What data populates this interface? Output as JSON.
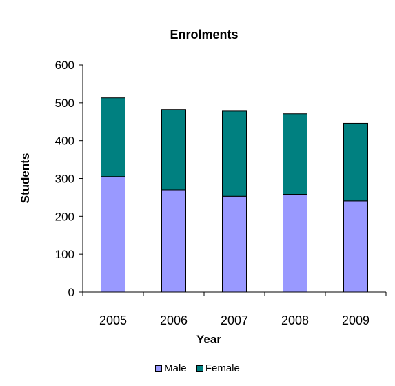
{
  "colors": {
    "male": "#9999ff",
    "female": "#008080",
    "axis": "#000000"
  },
  "legend": {
    "male_label": "Male",
    "female_label": "Female"
  },
  "chart_data": {
    "type": "bar",
    "stacked": true,
    "title": "Enrolments",
    "xlabel": "Year",
    "ylabel": "Students",
    "categories": [
      "2005",
      "2006",
      "2007",
      "2008",
      "2009"
    ],
    "series": [
      {
        "name": "Male",
        "values": [
          305,
          270,
          253,
          258,
          241
        ]
      },
      {
        "name": "Female",
        "values": [
          208,
          212,
          225,
          213,
          205
        ]
      }
    ],
    "ylim": [
      0,
      600
    ],
    "yticks": [
      0,
      100,
      200,
      300,
      400,
      500,
      600
    ],
    "grid": false,
    "legend_position": "bottom"
  }
}
